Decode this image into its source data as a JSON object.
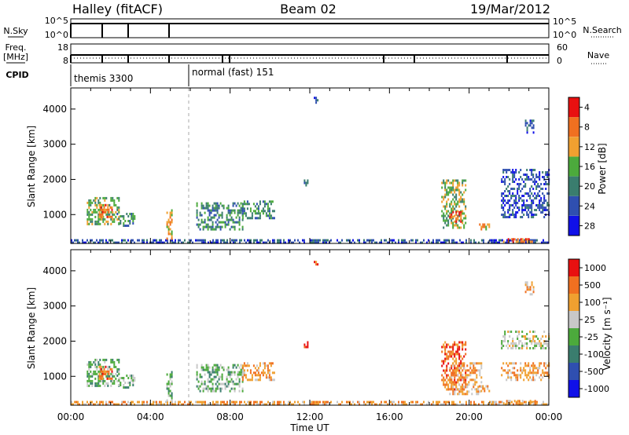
{
  "header": {
    "title": "Halley (fitACF)",
    "beam": "Beam 02",
    "date": "19/Mar/2012"
  },
  "panels": {
    "nsky": {
      "label": "N.Sky",
      "ticks": [
        "10^5",
        "10^0"
      ],
      "right_label": "N.Search",
      "right_ticks": [
        "10^5",
        "10^0"
      ]
    },
    "freq": {
      "label": "Freq.",
      "unit": "[MHz]",
      "ticks": [
        "18",
        "8"
      ],
      "right_label": "Nave",
      "right_ticks": [
        "60",
        "0"
      ]
    },
    "cpid": {
      "label": "CPID",
      "segments": [
        {
          "label": "themis 3300",
          "from_hour": 0,
          "to_hour": 6.0
        },
        {
          "label": "normal (fast) 151",
          "from_hour": 6.0,
          "to_hour": 24
        }
      ]
    }
  },
  "axes": {
    "x_ticks": [
      "00:00",
      "04:00",
      "08:00",
      "12:00",
      "16:00",
      "20:00",
      "00:00"
    ],
    "x_label": "Time UT",
    "y_label": "Slant Range [km]",
    "y_ticks": [
      "1000",
      "2000",
      "3000",
      "4000"
    ]
  },
  "chart_data": [
    {
      "type": "heatmap",
      "title": "Power",
      "colorbar_label": "Power [dB]",
      "colorbar_ticks": [
        "4",
        "8",
        "12",
        "16",
        "20",
        "24",
        "28"
      ],
      "colorbar_colors": [
        "#1010e8",
        "#2f4fb0",
        "#3a7d6e",
        "#4caa3c",
        "#f0a030",
        "#f07020",
        "#e81010"
      ],
      "x_range_hours": [
        0,
        24
      ],
      "y_range_km": [
        180,
        4600
      ],
      "regions": [
        {
          "t0": 0.0,
          "t1": 24.0,
          "r0": 180,
          "r1": 300,
          "level": 1
        },
        {
          "t0": 0.8,
          "t1": 2.4,
          "r0": 700,
          "r1": 1500,
          "level": 3
        },
        {
          "t0": 1.4,
          "t1": 2.1,
          "r0": 900,
          "r1": 1300,
          "level": 5
        },
        {
          "t0": 2.3,
          "t1": 3.2,
          "r0": 650,
          "r1": 1050,
          "level": 2
        },
        {
          "t0": 4.8,
          "t1": 5.1,
          "r0": 300,
          "r1": 1150,
          "level": 4
        },
        {
          "t0": 6.3,
          "t1": 8.6,
          "r0": 550,
          "r1": 1350,
          "level": 2
        },
        {
          "t0": 8.6,
          "t1": 10.2,
          "r0": 900,
          "r1": 1400,
          "level": 2
        },
        {
          "t0": 12.2,
          "t1": 12.4,
          "r0": 4200,
          "r1": 4350,
          "level": 1
        },
        {
          "t0": 11.7,
          "t1": 11.9,
          "r0": 1800,
          "r1": 2000,
          "level": 1
        },
        {
          "t0": 18.6,
          "t1": 19.8,
          "r0": 600,
          "r1": 2000,
          "level": 3
        },
        {
          "t0": 19.0,
          "t1": 19.6,
          "r0": 800,
          "r1": 1100,
          "level": 5
        },
        {
          "t0": 20.5,
          "t1": 21.0,
          "r0": 550,
          "r1": 750,
          "level": 4
        },
        {
          "t0": 21.6,
          "t1": 24.0,
          "r0": 900,
          "r1": 2300,
          "level": 1
        },
        {
          "t0": 21.7,
          "t1": 23.4,
          "r0": 200,
          "r1": 330,
          "level": 5
        },
        {
          "t0": 22.8,
          "t1": 23.2,
          "r0": 3300,
          "r1": 3700,
          "level": 1
        }
      ]
    },
    {
      "type": "heatmap",
      "title": "Velocity",
      "colorbar_label": "Velocity [m s⁻¹]",
      "colorbar_ticks": [
        "1000",
        "500",
        "100",
        "25",
        "-25",
        "-100",
        "-500",
        "-1000"
      ],
      "colorbar_colors": [
        "#1010e8",
        "#2f4fb0",
        "#3a7d6e",
        "#4caa3c",
        "#c8c8c8",
        "#f0a030",
        "#f07020",
        "#e81010"
      ],
      "x_range_hours": [
        0,
        24
      ],
      "y_range_km": [
        180,
        4600
      ],
      "regions": [
        {
          "t0": 0.0,
          "t1": 24.0,
          "r0": 180,
          "r1": 300,
          "level": 5
        },
        {
          "t0": 0.8,
          "t1": 2.4,
          "r0": 700,
          "r1": 1500,
          "level": 3
        },
        {
          "t0": 1.4,
          "t1": 2.1,
          "r0": 900,
          "r1": 1300,
          "level": 6
        },
        {
          "t0": 2.3,
          "t1": 3.2,
          "r0": 650,
          "r1": 1050,
          "level": 3
        },
        {
          "t0": 4.8,
          "t1": 5.1,
          "r0": 300,
          "r1": 1150,
          "level": 3
        },
        {
          "t0": 6.3,
          "t1": 8.6,
          "r0": 550,
          "r1": 1350,
          "level": 3
        },
        {
          "t0": 8.6,
          "t1": 10.2,
          "r0": 900,
          "r1": 1400,
          "level": 5
        },
        {
          "t0": 12.2,
          "t1": 12.4,
          "r0": 4150,
          "r1": 4350,
          "level": 6
        },
        {
          "t0": 11.7,
          "t1": 11.9,
          "r0": 1800,
          "r1": 2000,
          "level": 6
        },
        {
          "t0": 18.6,
          "t1": 19.8,
          "r0": 600,
          "r1": 2000,
          "level": 6
        },
        {
          "t0": 19.0,
          "t1": 20.6,
          "r0": 500,
          "r1": 1400,
          "level": 5
        },
        {
          "t0": 20.5,
          "t1": 21.0,
          "r0": 550,
          "r1": 750,
          "level": 5
        },
        {
          "t0": 21.6,
          "t1": 24.0,
          "r0": 900,
          "r1": 1400,
          "level": 5
        },
        {
          "t0": 21.6,
          "t1": 24.0,
          "r0": 1800,
          "r1": 2300,
          "level": 4
        },
        {
          "t0": 21.7,
          "t1": 23.4,
          "r0": 200,
          "r1": 330,
          "level": 5
        },
        {
          "t0": 22.8,
          "t1": 23.2,
          "r0": 3300,
          "r1": 3700,
          "level": 5
        }
      ]
    }
  ]
}
